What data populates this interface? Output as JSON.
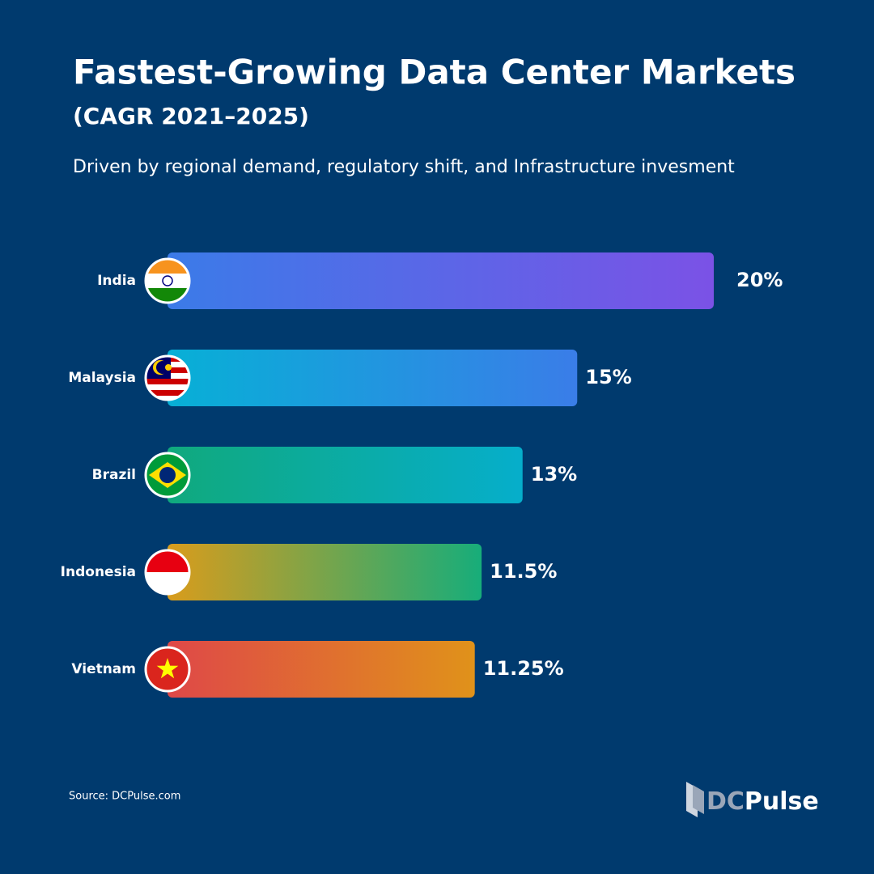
{
  "chart_data": {
    "type": "hbar",
    "title": "Fastest-Growing Data Center Markets",
    "subtitle": "(CAGR 2021–2025)",
    "description": "Driven by regional demand, regulatory shift, and Infrastructure invesment",
    "categories": [
      "India",
      "Malaysia",
      "Brazil",
      "Indonesia",
      "Vietnam"
    ],
    "values": [
      20,
      15,
      13,
      11.5,
      11.25
    ],
    "value_labels": [
      "20%",
      "15%",
      "13%",
      "11.5%",
      "11.25%"
    ],
    "colors": [
      [
        "#3b7be8",
        "#7b52e6"
      ],
      [
        "#07b0d6",
        "#3a7de8"
      ],
      [
        "#10a97d",
        "#06aecb"
      ],
      [
        "#d99c1c",
        "#17ad7a"
      ],
      [
        "#df4848",
        "#e0921a"
      ]
    ],
    "source": "Source: DCPulse.com",
    "logo": {
      "dc": "DC",
      "pulse": "Pulse"
    }
  }
}
